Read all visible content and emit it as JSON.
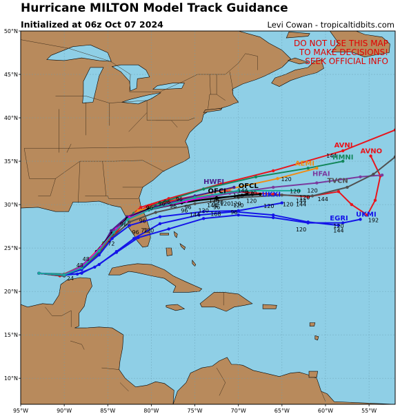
{
  "header": {
    "title": "Hurricane MILTON Model Track Guidance",
    "subtitle": "Initialized at 06z Oct 07 2024",
    "credit": "Levi Cowan - tropicaltidbits.com"
  },
  "warning": [
    "DO NOT USE THIS MAP",
    "TO MAKE DECISIONS!",
    "SEEK OFFICIAL INFO"
  ],
  "colors": {
    "ocean": "#8fcfe6",
    "land": "#b88a5c",
    "border": "#000000",
    "warning": "#e00000"
  },
  "chart_data": {
    "type": "map",
    "lon_range": [
      -95,
      -52
    ],
    "lat_range": [
      7,
      50
    ],
    "x_ticks": [
      "95°W",
      "90°W",
      "85°W",
      "80°W",
      "75°W",
      "70°W",
      "65°W",
      "60°W",
      "55°W"
    ],
    "y_ticks": [
      "10°N",
      "15°N",
      "20°N",
      "25°N",
      "30°N",
      "35°N",
      "40°N",
      "45°N",
      "50°N"
    ],
    "tracks": [
      {
        "name": "AVNI",
        "color": "#e8141c",
        "label": "AVNI",
        "points": [
          [
            -92.9,
            22.1
          ],
          [
            -90.5,
            21.8
          ],
          [
            -88.5,
            22.6
          ],
          [
            -86,
            24.5
          ],
          [
            -84,
            26.8
          ],
          [
            -83,
            28.2
          ],
          [
            -81.2,
            29.7
          ],
          [
            -78,
            30.7
          ],
          [
            -72,
            32.4
          ],
          [
            -66,
            33.9
          ],
          [
            -58,
            36.2
          ],
          [
            -52,
            38.6
          ]
        ],
        "hours": [
          {
            "t": "144",
            "at": [
              -59.3,
              35.4
            ]
          }
        ]
      },
      {
        "name": "AVNO",
        "color": "#e8141c",
        "label": "AVNO",
        "points": [
          [
            -92.9,
            22.1
          ],
          [
            -90,
            21.9
          ],
          [
            -88,
            22.8
          ],
          [
            -85.8,
            24.8
          ],
          [
            -84,
            27
          ],
          [
            -82.5,
            28.6
          ],
          [
            -80.3,
            29.9
          ],
          [
            -77,
            30.6
          ],
          [
            -72,
            31.6
          ],
          [
            -66,
            31.2
          ],
          [
            -62,
            30.9
          ],
          [
            -58.5,
            31.5
          ],
          [
            -57,
            30
          ],
          [
            -55.2,
            28.8
          ],
          [
            -54.3,
            30.5
          ],
          [
            -53.7,
            33.3
          ],
          [
            -54.8,
            35.6
          ]
        ],
        "hours": [
          {
            "t": "",
            "at": [
              -55,
              34
            ]
          }
        ]
      },
      {
        "name": "HMNI",
        "color": "#13875a",
        "label": "HMNI",
        "points": [
          [
            -92.9,
            22.1
          ],
          [
            -90,
            22
          ],
          [
            -87.5,
            23.2
          ],
          [
            -85.5,
            25.6
          ],
          [
            -83.8,
            27.5
          ],
          [
            -82,
            29
          ],
          [
            -79,
            30.2
          ],
          [
            -74,
            31.8
          ],
          [
            -68,
            33.2
          ],
          [
            -62,
            34.2
          ],
          [
            -58,
            35
          ]
        ],
        "hours": []
      },
      {
        "name": "AEMI",
        "color": "#f08c14",
        "label": "AEMI",
        "points": [
          [
            -92.9,
            22.1
          ],
          [
            -90.3,
            21.9
          ],
          [
            -88,
            22.9
          ],
          [
            -85.5,
            25.5
          ],
          [
            -83.5,
            27.8
          ],
          [
            -81.5,
            29.3
          ],
          [
            -77,
            30.5
          ],
          [
            -71,
            31.8
          ],
          [
            -65.5,
            33
          ],
          [
            -61,
            34.2
          ]
        ],
        "hours": [
          {
            "t": "120",
            "at": [
              -64.5,
              32.7
            ]
          }
        ]
      },
      {
        "name": "HFAI",
        "color": "#7a3a9e",
        "label": "HFAI",
        "points": [
          [
            -92.9,
            22.1
          ],
          [
            -90.2,
            21.9
          ],
          [
            -88.2,
            22.8
          ],
          [
            -86,
            24.8
          ],
          [
            -84.5,
            26.9
          ],
          [
            -83,
            28.2
          ],
          [
            -80.5,
            29.4
          ],
          [
            -76,
            30.4
          ],
          [
            -71,
            31.3
          ],
          [
            -66,
            32
          ],
          [
            -61,
            32.5
          ],
          [
            -56,
            33.2
          ],
          [
            -53.5,
            33.4
          ]
        ],
        "hours": [
          {
            "t": "120",
            "at": [
              -61.5,
              31.4
            ]
          }
        ]
      },
      {
        "name": "HWFI",
        "color": "#4b1f8c",
        "label": "HWFI",
        "points": [
          [
            -92.9,
            22.1
          ],
          [
            -90,
            21.8
          ],
          [
            -88,
            22.6
          ],
          [
            -86,
            24.6
          ],
          [
            -84.6,
            27
          ],
          [
            -82.8,
            28.6
          ],
          [
            -79.5,
            29.8
          ],
          [
            -75,
            31
          ],
          [
            -70.5,
            32
          ]
        ],
        "hours": []
      },
      {
        "name": "OFCI",
        "color": "#000000",
        "label": "OFCI",
        "points": [
          [
            -92.9,
            22.1
          ],
          [
            -90,
            21.8
          ],
          [
            -88,
            22.6
          ],
          [
            -86.3,
            24.6
          ],
          [
            -84.5,
            26.7
          ],
          [
            -82.8,
            28.4
          ],
          [
            -80.3,
            29.5
          ],
          [
            -76.5,
            30.3
          ],
          [
            -72.5,
            30.7
          ],
          [
            -69,
            31.2
          ]
        ],
        "hours": [
          {
            "t": "96",
            "at": [
              -72.5,
              29.5
            ]
          }
        ]
      },
      {
        "name": "OFCL",
        "color": "#000000",
        "label": "OFCL",
        "points": [
          [
            -92.9,
            22.1
          ],
          [
            -90,
            21.8
          ],
          [
            -88,
            22.6
          ],
          [
            -86.3,
            24.5
          ],
          [
            -84.5,
            26.6
          ],
          [
            -82.8,
            28.3
          ],
          [
            -80.3,
            29.4
          ],
          [
            -76.5,
            30.2
          ],
          [
            -72.5,
            30.8
          ],
          [
            -67.5,
            31.2
          ]
        ],
        "hours": [
          {
            "t": "120",
            "at": [
              -70,
              29.7
            ]
          }
        ]
      },
      {
        "name": "TVCN",
        "color": "#505050",
        "label": "TVCN",
        "points": [
          [
            -92.9,
            22.1
          ],
          [
            -90,
            21.8
          ],
          [
            -88,
            22.6
          ],
          [
            -86,
            24.4
          ],
          [
            -84.3,
            26.4
          ],
          [
            -82.5,
            28
          ],
          [
            -79.5,
            29.1
          ],
          [
            -75,
            30.1
          ],
          [
            -70,
            30.8
          ],
          [
            -65,
            31.1
          ],
          [
            -61.5,
            31
          ],
          [
            -57.5,
            32
          ],
          [
            -54.5,
            33.5
          ],
          [
            -52,
            35.5
          ]
        ],
        "hours": [
          {
            "t": "144",
            "at": [
              -62.8,
              30.2
            ]
          }
        ]
      },
      {
        "name": "UKXI",
        "color": "#1414e8",
        "label": "UKXI",
        "points": [
          [
            -92.9,
            22.1
          ],
          [
            -90,
            21.9
          ],
          [
            -88,
            22.5
          ],
          [
            -86,
            24.2
          ],
          [
            -84.5,
            26.1
          ],
          [
            -82.5,
            27.6
          ],
          [
            -79,
            28.6
          ],
          [
            -74,
            29.2
          ],
          [
            -70,
            29.3
          ],
          [
            -65,
            30.2
          ]
        ],
        "hours": [
          {
            "t": "120",
            "at": [
              -66.5,
              29.6
            ]
          }
        ]
      },
      {
        "name": "EGRI",
        "color": "#1414e8",
        "label": "EGRI",
        "points": [
          [
            -92.9,
            22.1
          ],
          [
            -90,
            21.9
          ],
          [
            -88,
            22.1
          ],
          [
            -86,
            23.1
          ],
          [
            -84,
            24.6
          ],
          [
            -82,
            26.1
          ],
          [
            -79,
            27.8
          ],
          [
            -74.5,
            28.8
          ],
          [
            -70.5,
            29.2
          ],
          [
            -66,
            28.8
          ],
          [
            -62,
            28
          ],
          [
            -58.5,
            27.6
          ]
        ],
        "hours": [
          {
            "t": "120",
            "at": [
              -62.8,
              26.9
            ]
          },
          {
            "t": "144",
            "at": [
              -58.5,
              26.8
            ]
          }
        ]
      },
      {
        "name": "UKMI",
        "color": "#1414e8",
        "label": "UKMI",
        "points": [
          [
            -92.9,
            22.1
          ],
          [
            -90,
            21.9
          ],
          [
            -88.5,
            22
          ],
          [
            -86.5,
            22.8
          ],
          [
            -84,
            24.5
          ],
          [
            -81.5,
            26.2
          ],
          [
            -78,
            27.2
          ],
          [
            -74,
            28.4
          ],
          [
            -70,
            28.8
          ],
          [
            -66,
            28.5
          ],
          [
            -62,
            27.9
          ],
          [
            -58,
            27.9
          ],
          [
            -56,
            28.3
          ]
        ],
        "hours": [
          {
            "t": "192",
            "at": [
              -54.5,
              28
            ]
          }
        ]
      },
      {
        "name": "GFDI",
        "color": "#e000e0",
        "label": "",
        "points": [
          [
            -92.9,
            22.1
          ],
          [
            -90,
            21.9
          ],
          [
            -88,
            22.8
          ],
          [
            -85.7,
            25.2
          ],
          [
            -84,
            27.2
          ],
          [
            -82.5,
            28.5
          ],
          [
            -80,
            29.5
          ],
          [
            -76,
            30.4
          ],
          [
            -73,
            31.1
          ]
        ],
        "hours": []
      },
      {
        "name": "NVGI",
        "color": "#17a89a",
        "label": "",
        "points": [
          [
            -92.9,
            22.1
          ],
          [
            -90,
            21.9
          ],
          [
            -88,
            22.7
          ],
          [
            -86,
            24.7
          ],
          [
            -84.3,
            26.8
          ],
          [
            -82.7,
            28.3
          ],
          [
            -80,
            29.5
          ],
          [
            -75,
            30.8
          ],
          [
            -70,
            31.6
          ],
          [
            -63,
            31.6
          ]
        ],
        "hours": []
      }
    ],
    "track_label_positions": {
      "AVNI": [
        -59,
        36.6
      ],
      "AVNO": [
        -56,
        35.9
      ],
      "HMNI": [
        -59.2,
        35.2
      ],
      "AEMI": [
        -63.5,
        34.5
      ],
      "HFAI": [
        -61.5,
        33.3
      ],
      "HWFI": [
        -74,
        32.4
      ],
      "OFCL": [
        -70,
        31.9
      ],
      "OFCI": [
        -73.5,
        31.3
      ],
      "TVCN": [
        -59.8,
        32.5
      ],
      "UKXI": [
        -67.3,
        30.9
      ],
      "EGRI": [
        -59.5,
        28.2
      ],
      "UKMI": [
        -56.5,
        28.6
      ]
    },
    "misc_hours": [
      {
        "t": "72",
        "at": [
          -84.6,
          25.3
        ]
      },
      {
        "t": "48",
        "at": [
          -87.5,
          23.5
        ]
      },
      {
        "t": "48",
        "at": [
          -88.2,
          22.8
        ]
      },
      {
        "t": "24",
        "at": [
          -89.3,
          21.3
        ]
      },
      {
        "t": "96",
        "at": [
          -83.2,
          27.5
        ]
      },
      {
        "t": "96",
        "at": [
          -81.8,
          26.6
        ]
      },
      {
        "t": "96",
        "at": [
          -81,
          27.9
        ]
      },
      {
        "t": "96",
        "at": [
          -80.2,
          29.4
        ]
      },
      {
        "t": "96",
        "at": [
          -78.8,
          29.9
        ]
      },
      {
        "t": "96",
        "at": [
          -77.5,
          29.6
        ]
      },
      {
        "t": "96",
        "at": [
          -78.2,
          30.1
        ]
      },
      {
        "t": "96",
        "at": [
          -76.8,
          30.4
        ]
      },
      {
        "t": "96",
        "at": [
          -75.8,
          29.5
        ]
      },
      {
        "t": "96",
        "at": [
          -76.2,
          29.1
        ]
      },
      {
        "t": "96",
        "at": [
          -70.5,
          28.9
        ]
      },
      {
        "t": "120",
        "at": [
          -80.3,
          26.8
        ]
      },
      {
        "t": "120",
        "at": [
          -74,
          29.1
        ]
      },
      {
        "t": "120",
        "at": [
          -72.3,
          30
        ]
      },
      {
        "t": "120",
        "at": [
          -68.5,
          30.2
        ]
      },
      {
        "t": "120",
        "at": [
          -70.3,
          29.9
        ]
      },
      {
        "t": "120",
        "at": [
          -71.5,
          29.9
        ]
      },
      {
        "t": "120",
        "at": [
          -72.8,
          30.2
        ]
      },
      {
        "t": "120",
        "at": [
          -70,
          30.8
        ]
      },
      {
        "t": "120",
        "at": [
          -68.5,
          31.1
        ]
      },
      {
        "t": "120",
        "at": [
          -63.5,
          31.3
        ]
      },
      {
        "t": "120",
        "at": [
          -62.4,
          30.6
        ]
      },
      {
        "t": "144",
        "at": [
          -75,
          28.6
        ]
      },
      {
        "t": "144",
        "at": [
          -62.8,
          29.8
        ]
      },
      {
        "t": "144",
        "at": [
          -60.3,
          30.4
        ]
      },
      {
        "t": "144",
        "at": [
          -73,
          29.7
        ]
      },
      {
        "t": "144",
        "at": [
          -69.5,
          31.4
        ]
      },
      {
        "t": "168",
        "at": [
          -72.6,
          28.7
        ]
      },
      {
        "t": "168",
        "at": [
          -68.8,
          31
        ]
      },
      {
        "t": "120",
        "at": [
          -58.5,
          27.3
        ]
      },
      {
        "t": "72",
        "at": [
          -80.8,
          26.8
        ]
      },
      {
        "t": "120",
        "at": [
          -64.3,
          29.8
        ]
      }
    ]
  }
}
